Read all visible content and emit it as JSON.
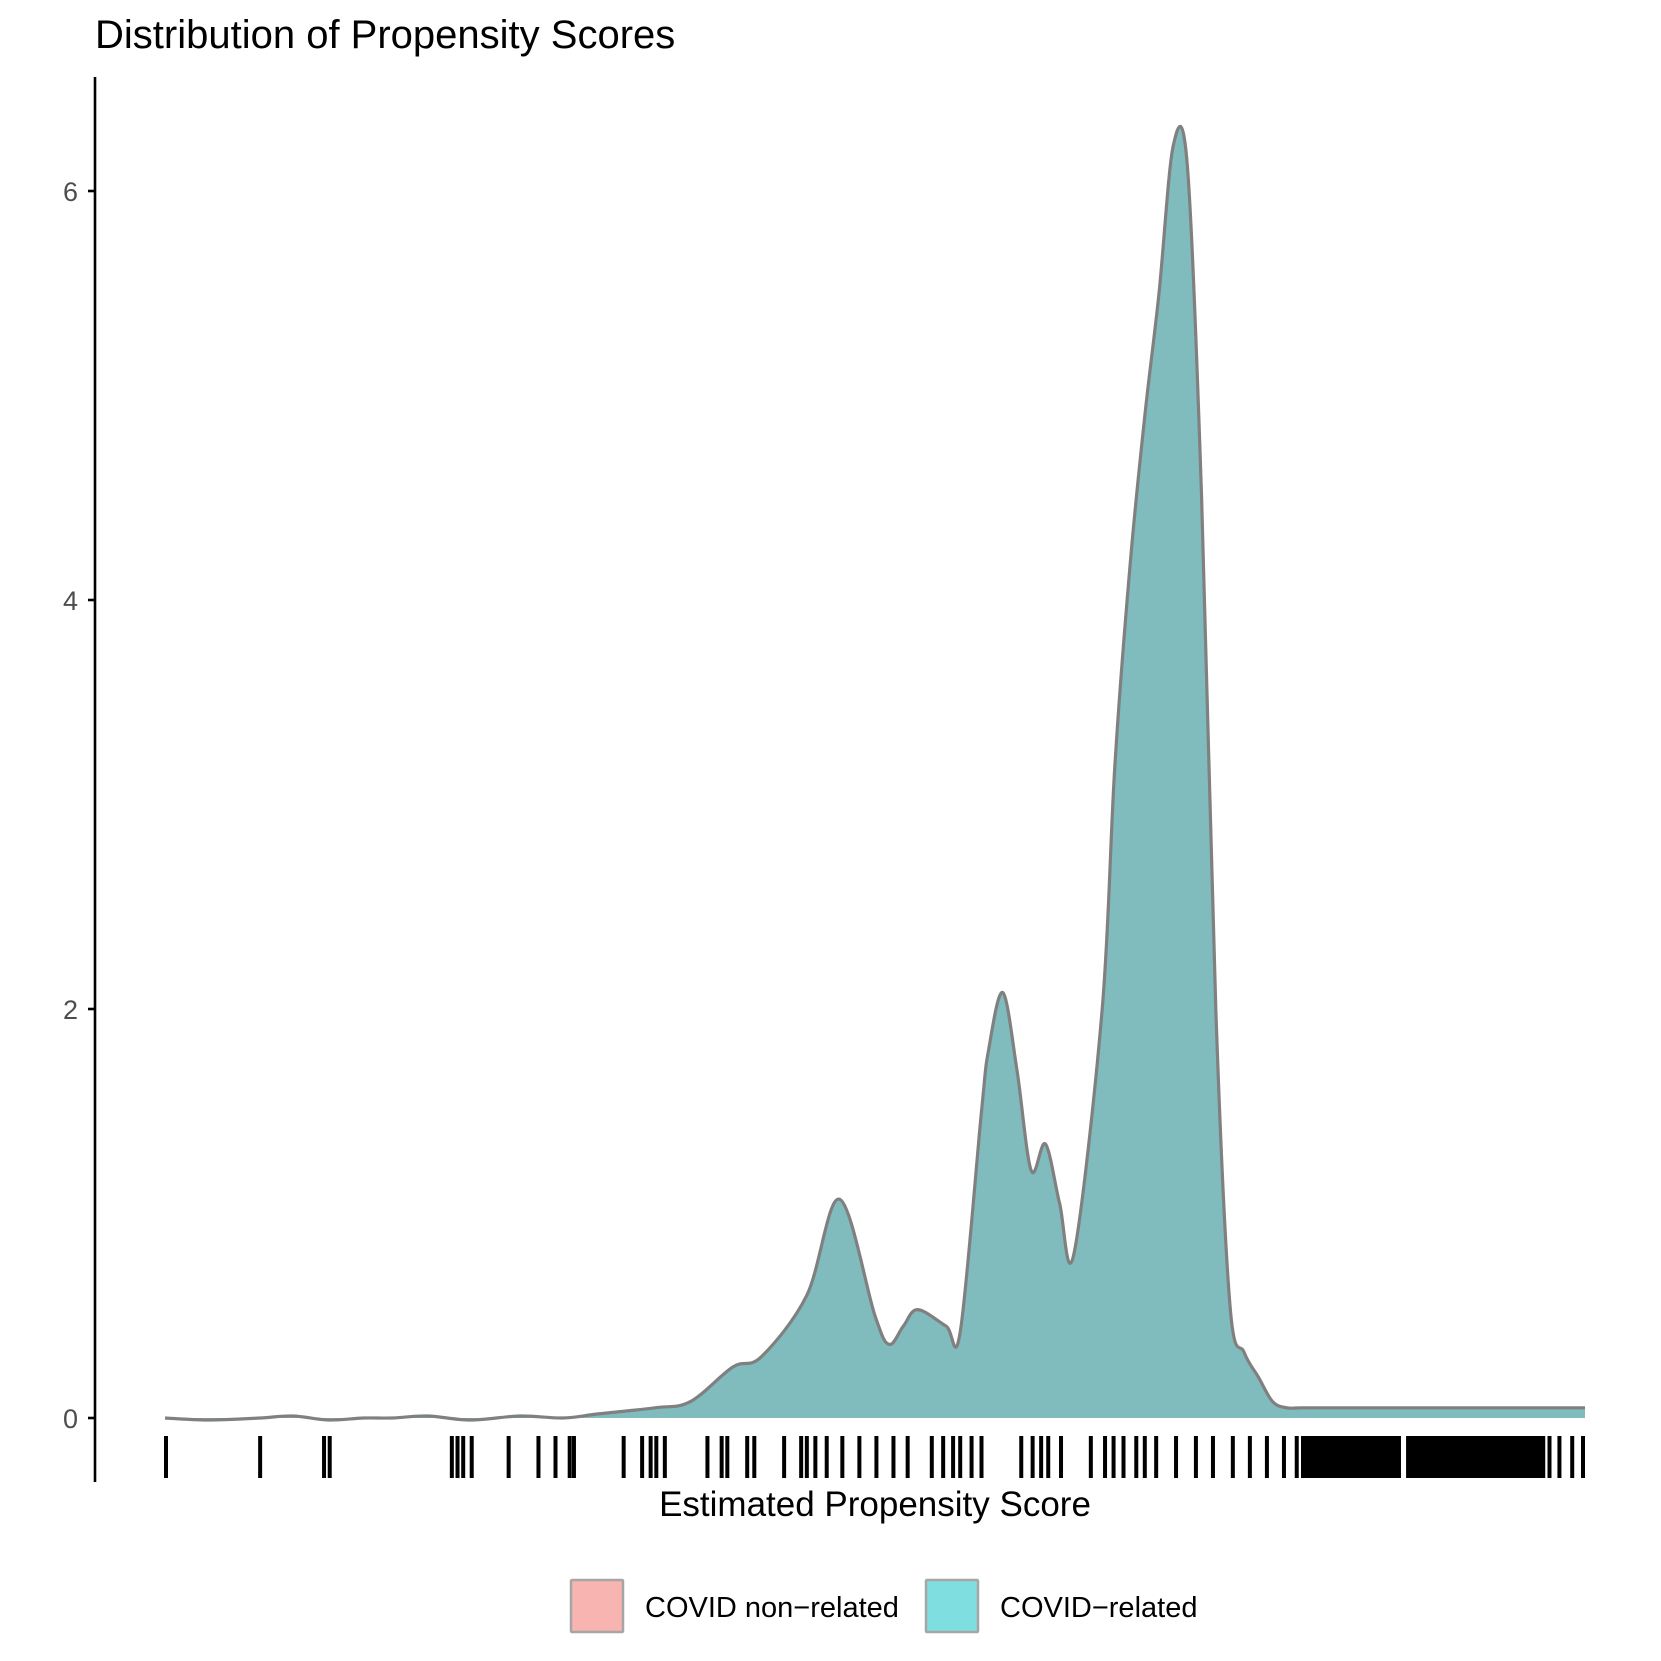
{
  "chart_data": {
    "type": "area",
    "title": "Distribution of Propensity Scores",
    "xlabel": "Estimated Propensity Score",
    "ylabel": "",
    "xlim": [
      0,
      1
    ],
    "ylim": [
      0,
      6.6
    ],
    "yticks": [
      0,
      2,
      4,
      6
    ],
    "x_tick_labels_shown": false,
    "grid": false,
    "legend_placement": "bottom",
    "legend": [
      {
        "name": "COVID non−related",
        "color": "#f8b4b0"
      },
      {
        "name": "COVID−related",
        "color": "#7fdfe0"
      }
    ],
    "series": [
      {
        "name": "COVID−related",
        "color": "#80bcbd",
        "line_color": "#808080",
        "x": [
          0.0,
          0.03,
          0.067,
          0.09,
          0.115,
          0.14,
          0.16,
          0.185,
          0.215,
          0.25,
          0.28,
          0.305,
          0.345,
          0.37,
          0.4,
          0.42,
          0.452,
          0.475,
          0.5,
          0.51,
          0.52,
          0.53,
          0.55,
          0.56,
          0.575,
          0.58,
          0.59,
          0.6,
          0.61,
          0.62,
          0.63,
          0.64,
          0.66,
          0.669,
          0.68,
          0.69,
          0.7,
          0.71,
          0.72,
          0.73,
          0.74,
          0.75,
          0.76,
          0.77,
          0.78,
          0.79,
          0.8,
          0.81,
          0.82,
          0.823,
          0.826,
          0.83,
          0.84,
          0.85,
          0.86,
          0.87,
          0.88,
          0.89,
          0.9,
          0.91,
          0.92,
          0.93,
          0.94,
          0.95,
          0.953,
          0.956,
          0.96,
          0.97,
          0.98,
          0.99,
          1.0
        ],
        "values": [
          0.0,
          -0.01,
          0.0,
          0.01,
          -0.01,
          0.0,
          0.0,
          0.01,
          -0.01,
          0.01,
          0.0,
          0.02,
          0.05,
          0.08,
          0.25,
          0.3,
          0.6,
          1.07,
          0.5,
          0.36,
          0.45,
          0.53,
          0.45,
          0.42,
          1.5,
          1.8,
          2.08,
          1.7,
          1.21,
          1.34,
          1.05,
          0.8,
          2.0,
          3.2,
          4.2,
          4.9,
          5.5,
          6.22,
          6.12,
          4.5,
          2.0,
          0.55,
          0.32,
          0.2,
          0.08,
          0.05,
          0.05,
          0.05,
          0.05,
          0.05,
          0.05,
          0.05,
          0.05,
          0.05,
          0.05,
          0.05,
          0.05,
          0.05,
          0.05,
          0.05,
          0.05,
          0.05,
          0.05,
          0.05,
          0.05,
          0.05,
          0.05,
          0.05,
          0.05,
          0.05,
          0.05
        ]
      }
    ],
    "rug_x": [
      0.0,
      0.067,
      0.112,
      0.116,
      0.202,
      0.206,
      0.21,
      0.216,
      0.242,
      0.263,
      0.275,
      0.285,
      0.288,
      0.323,
      0.336,
      0.342,
      0.346,
      0.352,
      0.382,
      0.392,
      0.396,
      0.41,
      0.415,
      0.436,
      0.448,
      0.452,
      0.458,
      0.466,
      0.477,
      0.489,
      0.501,
      0.513,
      0.523,
      0.54,
      0.548,
      0.555,
      0.56,
      0.568,
      0.575,
      0.603,
      0.611,
      0.617,
      0.622,
      0.631,
      0.652,
      0.662,
      0.668,
      0.675,
      0.684,
      0.69,
      0.698,
      0.712,
      0.726,
      0.738,
      0.752,
      0.764,
      0.776,
      0.788,
      0.797,
      0.806,
      0.815,
      0.826,
      0.834,
      0.843,
      0.852,
      0.86,
      0.869,
      0.878,
      0.886,
      0.895,
      0.904,
      0.913,
      0.921,
      0.93,
      0.938,
      0.947,
      0.953,
      0.96,
      0.968,
      0.975,
      0.982,
      0.991,
      1.0
    ]
  }
}
